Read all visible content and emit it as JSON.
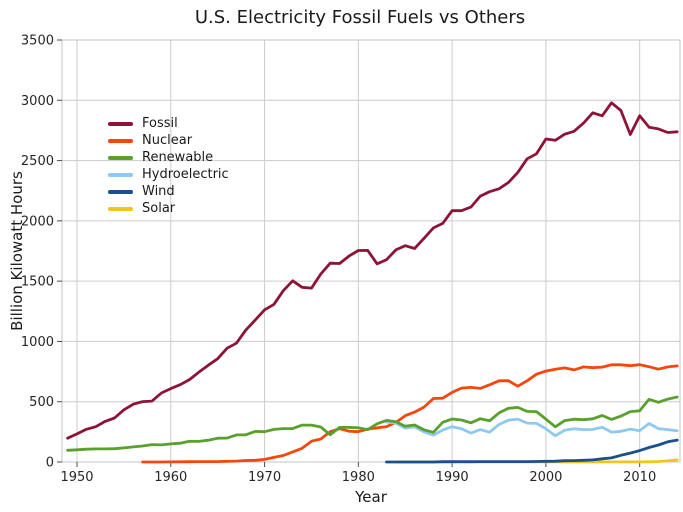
{
  "chart_data": {
    "type": "line",
    "title": "U.S. Electricity Fossil Fuels vs Others",
    "xlabel": "Year",
    "ylabel": "Billion Kilowatt Hours",
    "x_ticks": [
      1950,
      1960,
      1970,
      1980,
      1990,
      2000,
      2010
    ],
    "y_ticks": [
      0,
      500,
      1000,
      1500,
      2000,
      2500,
      3000,
      3500
    ],
    "x_range": [
      1948.4,
      2014.3
    ],
    "y_range": [
      0,
      3500
    ],
    "grid": true,
    "legend_position": "upper-left",
    "colors": {
      "background": "#ffffff",
      "gridline": "#cccccc",
      "spine": "#c4c4c4",
      "tick_mark": "#4d4d4d",
      "tick_label": "#262626",
      "text": "#1a1a1a"
    },
    "series": [
      {
        "name": "Fossil",
        "color": "#8c1437",
        "start_year": 1949,
        "end_year": 2014,
        "values": [
          197,
          233,
          271,
          293,
          337,
          365,
          433,
          479,
          501,
          505,
          572,
          609,
          641,
          683,
          746,
          803,
          857,
          944,
          985,
          1094,
          1177,
          1262,
          1307,
          1421,
          1503,
          1449,
          1442,
          1559,
          1649,
          1646,
          1708,
          1754,
          1755,
          1644,
          1678,
          1759,
          1794,
          1771,
          1855,
          1942,
          1979,
          2084,
          2084,
          2114,
          2205,
          2242,
          2266,
          2318,
          2402,
          2515,
          2556,
          2679,
          2668,
          2719,
          2743,
          2810,
          2896,
          2871,
          2979,
          2915,
          2716,
          2872,
          2777,
          2763,
          2733,
          2739
        ]
      },
      {
        "name": "Nuclear",
        "color": "#f4470e",
        "start_year": 1957,
        "end_year": 2014,
        "values": [
          0.1,
          0.2,
          0.2,
          0.5,
          1.7,
          2.3,
          3.2,
          3.3,
          3.7,
          5.5,
          7.7,
          12.5,
          13.9,
          21.8,
          38.1,
          54.1,
          83.5,
          114,
          172.5,
          191.1,
          250.9,
          276.4,
          255.2,
          251.1,
          272.7,
          282.8,
          293.7,
          327.6,
          383.7,
          414,
          455.3,
          527,
          529.4,
          576.9,
          612.6,
          618.8,
          610.3,
          640.4,
          673.4,
          674.7,
          628.6,
          673.7,
          728.3,
          753.9,
          768.8,
          780.1,
          763.7,
          788.5,
          782,
          787.2,
          806.4,
          806.2,
          798.9,
          807,
          790.2,
          769.3,
          789,
          797.2
        ]
      },
      {
        "name": "Renewable",
        "color": "#59a02c",
        "start_year": 1949,
        "end_year": 2014,
        "values": [
          97,
          101,
          106,
          109,
          109,
          110,
          117,
          125,
          133,
          144,
          142,
          150,
          156,
          172,
          171,
          181,
          197,
          198,
          225,
          226,
          254,
          251,
          270,
          277,
          277,
          306,
          306,
          290,
          226,
          287,
          287,
          284,
          268,
          317,
          345,
          334,
          297,
          307,
          267,
          246,
          329,
          357,
          348,
          325,
          359,
          342,
          407,
          445,
          453,
          420,
          418,
          356,
          292,
          343,
          355,
          351,
          358,
          386,
          353,
          381,
          418,
          425,
          520,
          495,
          522,
          539
        ]
      },
      {
        "name": "Hydroelectric",
        "color": "#8ec9f0",
        "start_year": 1983,
        "end_year": 2014,
        "values": [
          332,
          321,
          281,
          291,
          250,
          223,
          265,
          293,
          276,
          240,
          269,
          247,
          311,
          347,
          356,
          323,
          320,
          276,
          217,
          264,
          276,
          268,
          270,
          289,
          248,
          255,
          273,
          260,
          319,
          276,
          269,
          259
        ]
      },
      {
        "name": "Wind",
        "color": "#1a508c",
        "start_year": 1983,
        "end_year": 2014,
        "values": [
          0,
          0.1,
          0,
          0,
          0,
          0.1,
          2.1,
          2.8,
          2.9,
          2.9,
          3,
          3.4,
          3.2,
          3.2,
          3.3,
          3,
          4.5,
          5.6,
          6.7,
          10.4,
          11.2,
          14.1,
          17.8,
          26.6,
          34.4,
          55.4,
          73.9,
          94.6,
          120.2,
          140.8,
          167.8,
          181.7
        ]
      },
      {
        "name": "Solar",
        "color": "#f5c319",
        "start_year": 1984,
        "end_year": 2014,
        "values": [
          0,
          0,
          0,
          0,
          0,
          0.4,
          0.4,
          0.5,
          0.4,
          0.5,
          0.5,
          0.5,
          0.5,
          0.5,
          0.5,
          0.5,
          0.5,
          0.5,
          0.6,
          0.5,
          0.6,
          0.6,
          0.5,
          0.6,
          0.9,
          0.9,
          1.2,
          1.8,
          4.3,
          9,
          17.7
        ]
      }
    ]
  }
}
